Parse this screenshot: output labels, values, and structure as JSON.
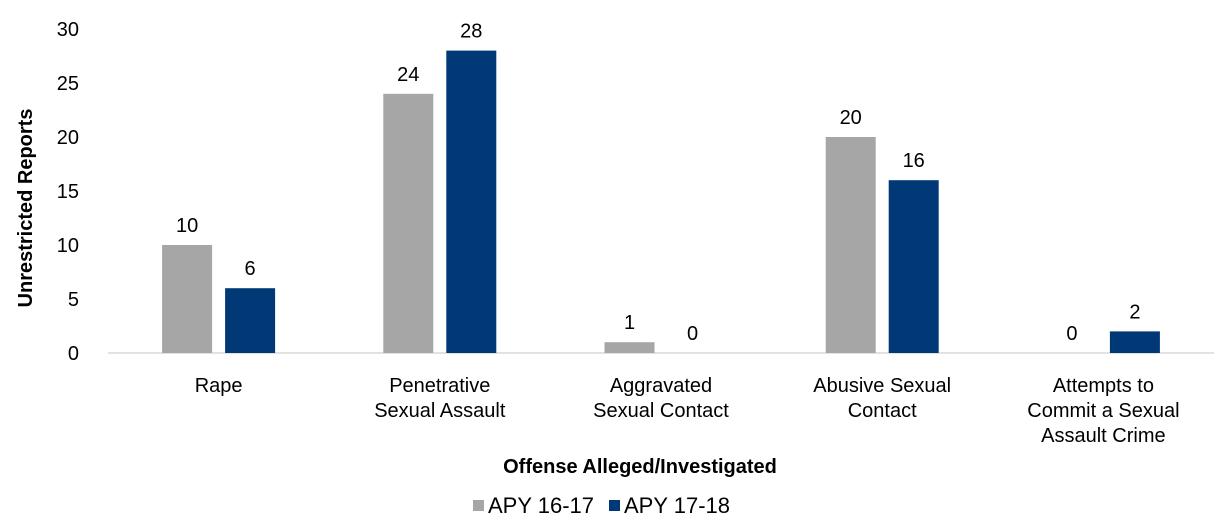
{
  "chart_data": {
    "type": "bar",
    "categories": [
      [
        "Rape"
      ],
      [
        "Penetrative",
        "Sexual Assault"
      ],
      [
        "Aggravated",
        "Sexual Contact"
      ],
      [
        "Abusive Sexual",
        "Contact"
      ],
      [
        "Attempts to",
        "Commit a Sexual",
        "Assault Crime"
      ]
    ],
    "series": [
      {
        "name": "APY 16-17",
        "values": [
          10,
          24,
          1,
          20,
          0
        ],
        "color": "#a6a6a6"
      },
      {
        "name": "APY 17-18",
        "values": [
          6,
          28,
          0,
          16,
          2
        ],
        "color": "#003976"
      }
    ],
    "xlabel": "Offense Alleged/Investigated",
    "ylabel": "Unrestricted Reports",
    "ylim": [
      0,
      30
    ],
    "yticks": [
      0,
      5,
      10,
      15,
      20,
      25,
      30
    ],
    "grid": false,
    "legend_position": "bottom"
  }
}
